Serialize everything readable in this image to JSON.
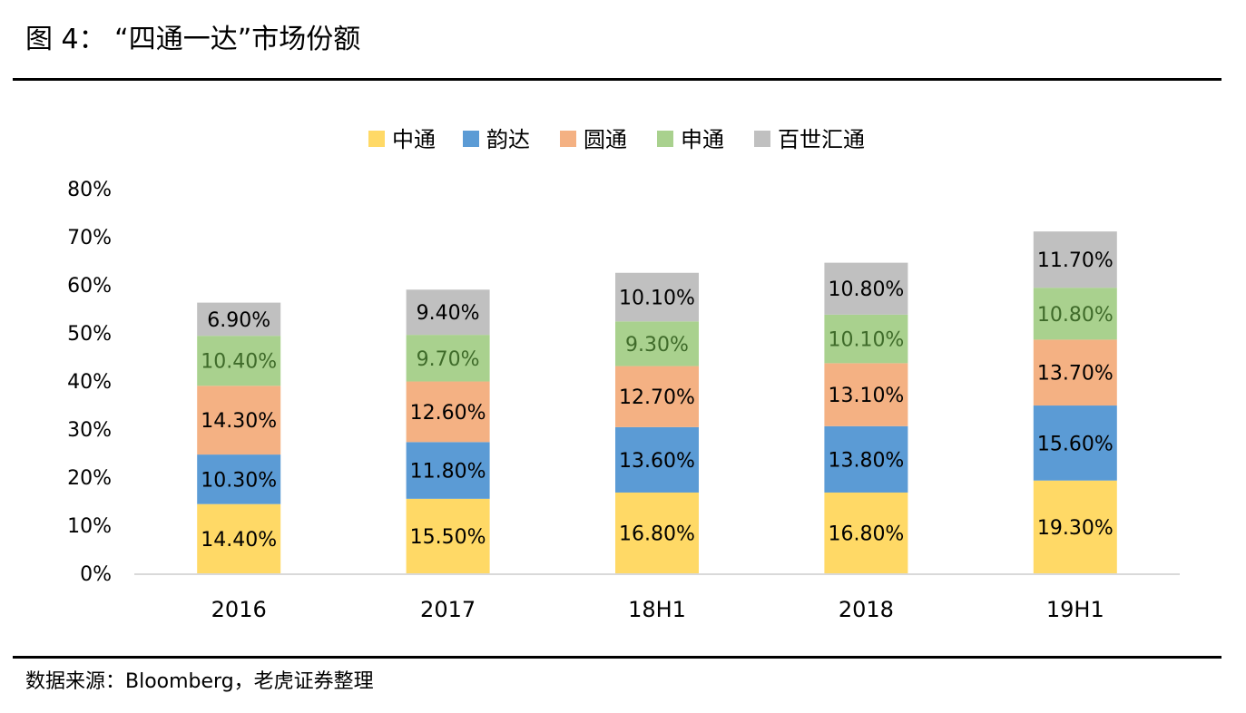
{
  "header": {
    "title": "图 4：  “四通一达”市场份额"
  },
  "footer": {
    "source": "数据来源：Bloomberg，老虎证券整理"
  },
  "chart_data": {
    "type": "bar",
    "stacked": true,
    "categories": [
      "2016",
      "2017",
      "18H1",
      "2018",
      "19H1"
    ],
    "series": [
      {
        "name": "中通",
        "color": "#FFD966",
        "values": [
          14.4,
          15.5,
          16.8,
          16.8,
          19.3
        ],
        "labels": [
          "14.40%",
          "15.50%",
          "16.80%",
          "16.80%",
          "19.30%"
        ]
      },
      {
        "name": "韵达",
        "color": "#5B9BD5",
        "values": [
          10.3,
          11.8,
          13.6,
          13.8,
          15.6
        ],
        "labels": [
          "10.30%",
          "11.80%",
          "13.60%",
          "13.80%",
          "15.60%"
        ]
      },
      {
        "name": "圆通",
        "color": "#F4B183",
        "values": [
          14.3,
          12.6,
          12.7,
          13.1,
          13.7
        ],
        "labels": [
          "14.30%",
          "12.60%",
          "12.70%",
          "13.10%",
          "13.70%"
        ]
      },
      {
        "name": "申通",
        "color": "#A9D18E",
        "values": [
          10.4,
          9.7,
          9.3,
          10.1,
          10.8
        ],
        "labels": [
          "10.40%",
          "9.70%",
          "9.30%",
          "10.10%",
          "10.80%"
        ]
      },
      {
        "name": "百世汇通",
        "color": "#C0C0C0",
        "values": [
          6.9,
          9.4,
          10.1,
          10.8,
          11.7
        ],
        "labels": [
          "6.90%",
          "9.40%",
          "10.10%",
          "10.80%",
          "11.70%"
        ]
      }
    ],
    "ylim": [
      0,
      80
    ],
    "yticks": [
      "0%",
      "10%",
      "20%",
      "30%",
      "40%",
      "50%",
      "60%",
      "70%",
      "80%"
    ],
    "grid": false,
    "legend": "top-center",
    "axis_color": "#D9D9D9"
  }
}
